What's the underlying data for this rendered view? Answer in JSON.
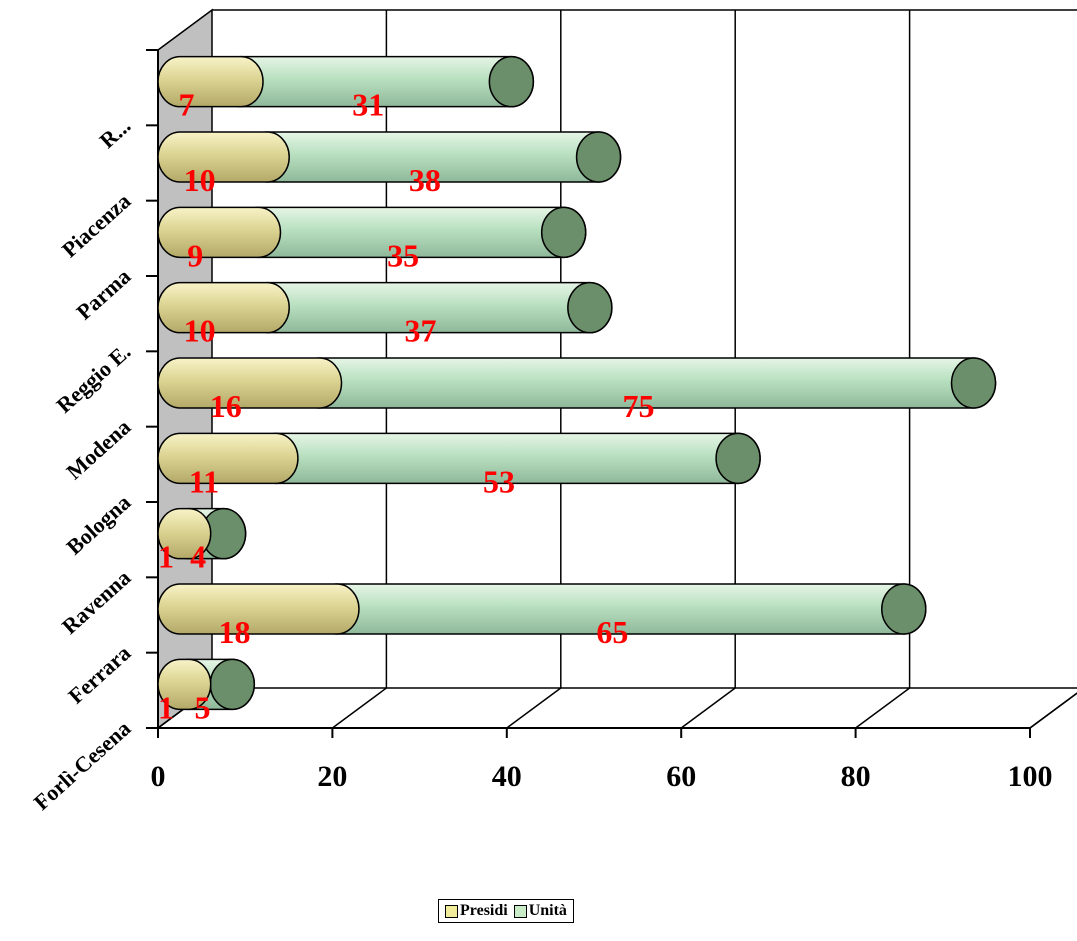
{
  "chart_data": {
    "type": "bar",
    "orientation": "horizontal",
    "stacked": true,
    "three_d": true,
    "categories": [
      "Forlì-Cesena",
      "Ferrara",
      "Ravenna",
      "Bologna",
      "Modena",
      "Reggio E.",
      "Parma",
      "Piacenza",
      "Rimini"
    ],
    "categories_visible": [
      "Forlì-Cesena",
      "Ferrara",
      "Ravenna",
      "Bologna",
      "Modena",
      "Reggio E.",
      "Parma",
      "Piacenza",
      "R..."
    ],
    "series": [
      {
        "name": "Presidi",
        "values": [
          1,
          18,
          1,
          11,
          16,
          10,
          9,
          10,
          7
        ],
        "color": "#e8e0a0"
      },
      {
        "name": "Unità",
        "values": [
          5,
          65,
          4,
          53,
          75,
          37,
          35,
          38,
          31
        ],
        "color": "#b8e0c0"
      }
    ],
    "xlim": [
      0,
      100
    ],
    "xticks": [
      "0",
      "20",
      "40",
      "60",
      "80",
      "100"
    ],
    "grid": true,
    "legend_position": "bottom",
    "colors": {
      "label": "#ff0000",
      "wall": "#c0c0c0",
      "cap": "#6a8f6a"
    }
  }
}
